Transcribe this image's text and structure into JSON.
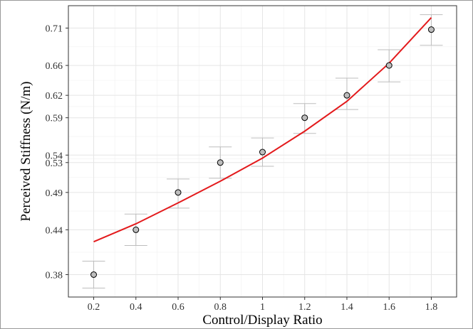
{
  "chart_data": {
    "type": "scatter",
    "title": "",
    "xlabel": "Control/Display Ratio",
    "ylabel": "Perceived Stiffness (N/m)",
    "xlim": [
      0.08,
      1.92
    ],
    "ylim": [
      0.35,
      0.74
    ],
    "grid": true,
    "x_ticks": [
      0.2,
      0.4,
      0.6,
      0.8,
      1.0,
      1.2,
      1.4,
      1.6,
      1.8
    ],
    "x_tick_labels": [
      "0.2",
      "0.4",
      "0.6",
      "0.8",
      "1",
      "1.2",
      "1.4",
      "1.6",
      "1.8"
    ],
    "y_ticks": [
      0.38,
      0.44,
      0.49,
      0.53,
      0.54,
      0.59,
      0.62,
      0.66,
      0.71
    ],
    "y_tick_labels": [
      "0.38",
      "0.44",
      "0.49",
      "0.53",
      "0.54",
      "0.59",
      "0.62",
      "0.66",
      "0.71"
    ],
    "series": [
      {
        "type": "scatter",
        "color": "#bdbdbd",
        "x": [
          0.2,
          0.4,
          0.6,
          0.8,
          1.0,
          1.2,
          1.4,
          1.6,
          1.8
        ],
        "y": [
          0.38,
          0.44,
          0.49,
          0.53,
          0.544,
          0.59,
          0.62,
          0.66,
          0.708
        ],
        "err_low": [
          0.362,
          0.419,
          0.469,
          0.509,
          0.525,
          0.569,
          0.601,
          0.638,
          0.687
        ],
        "err_high": [
          0.398,
          0.461,
          0.508,
          0.551,
          0.563,
          0.609,
          0.643,
          0.681,
          0.728
        ]
      },
      {
        "type": "line",
        "color": "#e31a1c",
        "x": [
          0.2,
          0.4,
          0.6,
          0.8,
          1.0,
          1.2,
          1.4,
          1.6,
          1.8
        ],
        "y": [
          0.424,
          0.448,
          0.476,
          0.505,
          0.536,
          0.572,
          0.612,
          0.663,
          0.724
        ]
      }
    ]
  }
}
